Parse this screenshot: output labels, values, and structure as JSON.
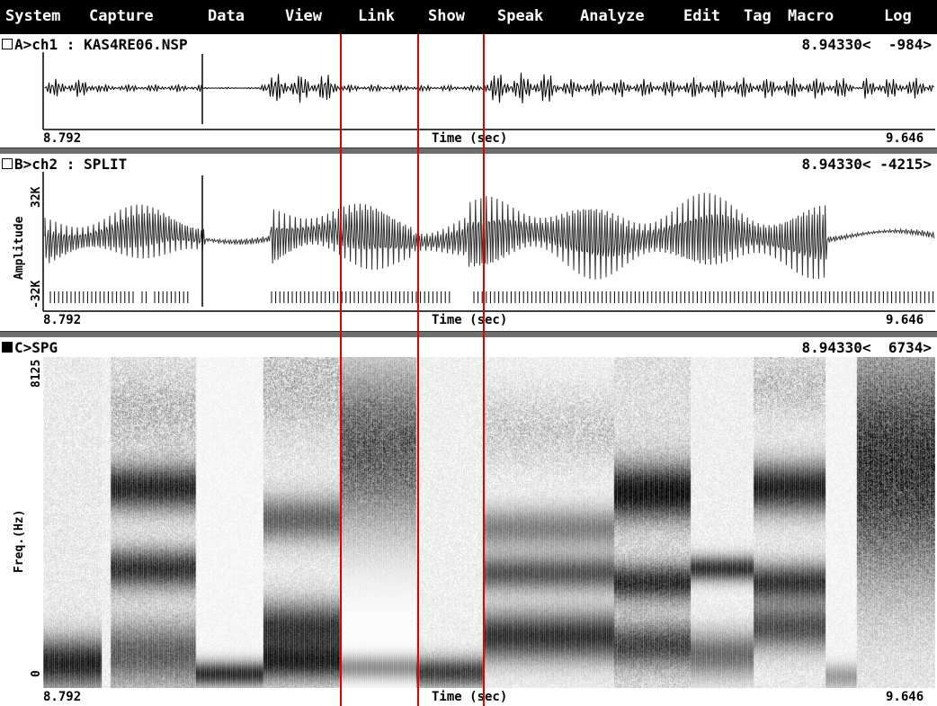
{
  "menu": [
    "System",
    "Capture",
    "Data",
    "View",
    "Link",
    "Show",
    "Speak",
    "Analyze",
    "Edit",
    "Tag",
    "Macro",
    "Log"
  ],
  "panels": {
    "a": {
      "title": "A>ch1 : KAS4RE06.NSP",
      "cursor": "8.94330<",
      "value": "-984>",
      "tmin": "8.792",
      "tmax": "9.646",
      "axis_label": "Time (sec)"
    },
    "b": {
      "title": "B>ch2 : SPLIT",
      "cursor": "8.94330<",
      "value": "-4215>",
      "tmin": "8.792",
      "tmax": "9.646",
      "axis_label": "Time (sec)",
      "ylabel": "Amplitude",
      "ytop": "32K",
      "ybot": "-32K"
    },
    "c": {
      "title": "C>SPG",
      "cursor": "8.94330<",
      "value": "6734>",
      "tmin": "8.792",
      "tmax": "9.646",
      "axis_label": "Time (sec)",
      "ylabel": "Freq.(Hz)",
      "ytop": "8125",
      "ybot": "0"
    }
  },
  "colors": {
    "menubar_bg": "#000000",
    "menubar_fg": "#ffffff",
    "separator": "#6e6e6e",
    "marker": "#e00000"
  }
}
